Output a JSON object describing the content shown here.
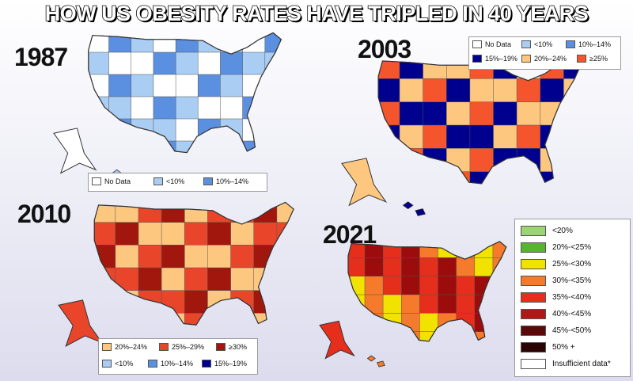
{
  "headline": "HOW US OBESITY RATES HAVE TRIPLED IN 40 YEARS",
  "panels": [
    {
      "year": "1987",
      "land": [
        "#ffffff",
        "#a9cdf3",
        "#5b8fe0"
      ],
      "legend": [
        {
          "label": "No Data",
          "color": "#ffffff"
        },
        {
          "label": "<10%",
          "color": "#a9cdf3"
        },
        {
          "label": "10%–14%",
          "color": "#5b8fe0"
        }
      ]
    },
    {
      "year": "2003",
      "land": [
        "#fdc77f",
        "#00008f",
        "#f4552c"
      ],
      "legend": [
        {
          "label": "No Data",
          "color": "#ffffff"
        },
        {
          "label": "<10%",
          "color": "#a9cdf3"
        },
        {
          "label": "10%–14%",
          "color": "#5b8fe0"
        },
        {
          "label": "15%–19%",
          "color": "#00008f"
        },
        {
          "label": "20%–24%",
          "color": "#fdc77f"
        },
        {
          "label": "≥25%",
          "color": "#f4552c"
        }
      ]
    },
    {
      "year": "2010",
      "land": [
        "#e8452a",
        "#fdc77f",
        "#a1170d"
      ],
      "legend": [
        {
          "label": "20%–24%",
          "color": "#fdc77f"
        },
        {
          "label": "25%–29%",
          "color": "#e8452a"
        },
        {
          "label": "≥30%",
          "color": "#a1170d"
        },
        {
          "label": "<10%",
          "color": "#a9cdf3"
        },
        {
          "label": "10%–14%",
          "color": "#5b8fe0"
        },
        {
          "label": "15%–19%",
          "color": "#00008f"
        }
      ]
    },
    {
      "year": "2021",
      "land": [
        "#e62e1c",
        "#f57a2b",
        "#9c0c0c",
        "#f2e200"
      ],
      "legend": [
        {
          "label": "<20%",
          "color": "#9cd473"
        },
        {
          "label": "20%-<25%",
          "color": "#55b52f"
        },
        {
          "label": "25%-<30%",
          "color": "#f2e200"
        },
        {
          "label": "30%-<35%",
          "color": "#f57a2b"
        },
        {
          "label": "35%-<40%",
          "color": "#e62e1c"
        },
        {
          "label": "40%-<45%",
          "color": "#b01818"
        },
        {
          "label": "45%-<50%",
          "color": "#5a0808"
        },
        {
          "label": "50% +",
          "color": "#2a0404"
        },
        {
          "label": "Insufficient data*",
          "color": "#ffffff"
        }
      ]
    }
  ]
}
